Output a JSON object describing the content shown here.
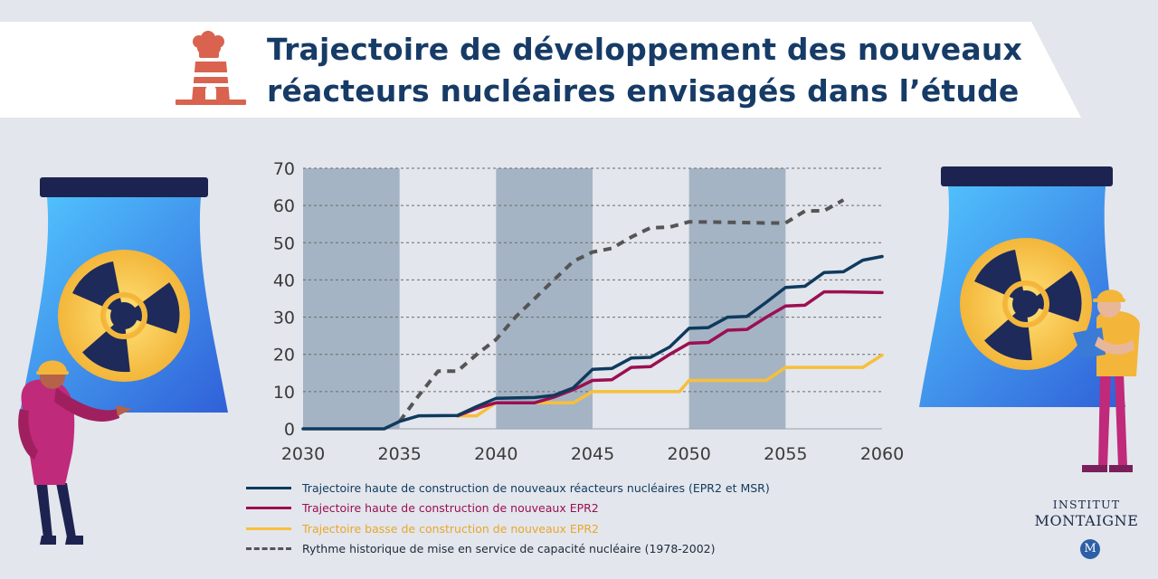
{
  "header": {
    "title_line1": "Trajectoire de développement des nouveaux",
    "title_line2": "réacteurs nucléaires envisagés dans l’étude"
  },
  "brand": {
    "line1": "INSTITUT",
    "line2": "MONTAIGNE",
    "badge": "M"
  },
  "colors": {
    "navy": "#0f3a5e",
    "crimson": "#9b0f52",
    "yellow": "#f7bf3a",
    "gray_dash": "#555555",
    "band": "#a5b4c4",
    "title": "#163b66"
  },
  "chart_data": {
    "type": "line",
    "title": "Trajectoire de développement des nouveaux réacteurs nucléaires envisagés dans l’étude",
    "xlabel": "",
    "ylabel": "",
    "xlim": [
      2030,
      2060
    ],
    "ylim": [
      0,
      70
    ],
    "x_ticks": [
      2030,
      2035,
      2040,
      2045,
      2050,
      2055,
      2060
    ],
    "y_ticks": [
      0,
      10,
      20,
      30,
      40,
      50,
      60,
      70
    ],
    "shaded_ranges": [
      [
        2030,
        2035
      ],
      [
        2040,
        2045
      ],
      [
        2050,
        2055
      ]
    ],
    "grid": true,
    "series": [
      {
        "name": "Trajectoire haute de construction de nouveaux réacteurs nucléaires (EPR2 et MSR)",
        "color": "#0f3a5e",
        "style": "solid",
        "points": [
          [
            2030,
            0
          ],
          [
            2034.2,
            0
          ],
          [
            2035,
            2
          ],
          [
            2036,
            3.5
          ],
          [
            2038,
            3.6
          ],
          [
            2039,
            6
          ],
          [
            2040,
            8.2
          ],
          [
            2042,
            8.4
          ],
          [
            2043,
            9
          ],
          [
            2044,
            11
          ],
          [
            2045,
            16
          ],
          [
            2046,
            16.2
          ],
          [
            2047,
            19
          ],
          [
            2048,
            19.2
          ],
          [
            2049,
            22
          ],
          [
            2050,
            27
          ],
          [
            2051,
            27.2
          ],
          [
            2052,
            30
          ],
          [
            2053,
            30.2
          ],
          [
            2054,
            34
          ],
          [
            2055,
            38
          ],
          [
            2056,
            38.3
          ],
          [
            2057,
            42
          ],
          [
            2058,
            42.2
          ],
          [
            2059,
            45.3
          ],
          [
            2060,
            46.3
          ]
        ]
      },
      {
        "name": "Trajectoire haute de construction de nouveaux EPR2",
        "color": "#9b0f52",
        "style": "solid",
        "points": [
          [
            2038,
            3.5
          ],
          [
            2039,
            5.5
          ],
          [
            2040,
            7
          ],
          [
            2042,
            7
          ],
          [
            2043,
            8.5
          ],
          [
            2044,
            10.5
          ],
          [
            2045,
            13
          ],
          [
            2046,
            13.2
          ],
          [
            2047,
            16.5
          ],
          [
            2048,
            16.7
          ],
          [
            2049,
            20
          ],
          [
            2050,
            23
          ],
          [
            2051,
            23.2
          ],
          [
            2052,
            26.5
          ],
          [
            2053,
            26.7
          ],
          [
            2054,
            30
          ],
          [
            2055,
            33
          ],
          [
            2056,
            33.2
          ],
          [
            2057,
            36.8
          ],
          [
            2058,
            36.8
          ],
          [
            2060,
            36.6
          ]
        ]
      },
      {
        "name": "Trajectoire basse de construction de nouveaux EPR2",
        "color": "#f7bf3a",
        "style": "solid",
        "points": [
          [
            2038,
            3.5
          ],
          [
            2039,
            3.5
          ],
          [
            2040,
            7
          ],
          [
            2044,
            7
          ],
          [
            2045,
            10
          ],
          [
            2049.5,
            10
          ],
          [
            2050,
            13
          ],
          [
            2054,
            13
          ],
          [
            2055,
            16.5
          ],
          [
            2059,
            16.5
          ],
          [
            2060,
            19.8
          ]
        ]
      },
      {
        "name": "Rythme historique de mise en service de capacité nucléaire (1978-2002)",
        "color": "#555555",
        "style": "dashed",
        "points": [
          [
            2035,
            2
          ],
          [
            2036,
            9
          ],
          [
            2037,
            15.5
          ],
          [
            2038,
            15.5
          ],
          [
            2039,
            20
          ],
          [
            2040,
            24
          ],
          [
            2041,
            30
          ],
          [
            2042,
            35
          ],
          [
            2043,
            40
          ],
          [
            2044,
            45
          ],
          [
            2045,
            47.5
          ],
          [
            2046,
            48.5
          ],
          [
            2047,
            51.5
          ],
          [
            2048,
            54
          ],
          [
            2049,
            54.2
          ],
          [
            2050,
            55.6
          ],
          [
            2052,
            55.5
          ],
          [
            2054,
            55.3
          ],
          [
            2055,
            55.3
          ],
          [
            2056,
            58.5
          ],
          [
            2057,
            58.6
          ],
          [
            2058,
            61.5
          ]
        ]
      }
    ]
  }
}
